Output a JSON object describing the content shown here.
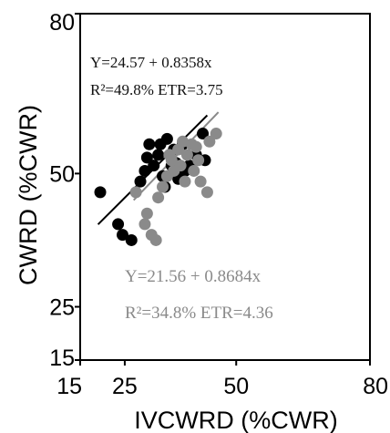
{
  "chart_data": {
    "type": "scatter",
    "xlabel": "IVCWRD (%CWR)",
    "ylabel": "CWRD (%CWR)",
    "xlim": [
      15,
      80
    ],
    "ylim": [
      15,
      80
    ],
    "x_ticks": [
      "15",
      "25",
      "50",
      "80"
    ],
    "y_ticks": [
      "15",
      "25",
      "50",
      "80"
    ],
    "grid": false,
    "series": [
      {
        "color": "#000000",
        "fit": {
          "intercept": 24.57,
          "slope": 0.8358
        },
        "equation": "Y=24.57 + 0.8358x",
        "stats": "R²=49.8%  ETR=3.75",
        "points": [
          [
            19.5,
            46.5
          ],
          [
            23.5,
            40.5
          ],
          [
            24.5,
            38.5
          ],
          [
            26.5,
            37.5
          ],
          [
            28.5,
            48.5
          ],
          [
            29.5,
            50.5
          ],
          [
            30.5,
            55.5
          ],
          [
            31.5,
            51.5
          ],
          [
            32.5,
            53.5
          ],
          [
            33.5,
            49.5
          ],
          [
            34.5,
            56.5
          ],
          [
            35.5,
            51.5
          ],
          [
            36.0,
            54.5
          ],
          [
            37.0,
            49.0
          ],
          [
            38.0,
            55.5
          ],
          [
            39.5,
            51.5
          ],
          [
            41.0,
            53.5
          ],
          [
            42.5,
            57.5
          ],
          [
            43.0,
            52.5
          ],
          [
            34.0,
            47.5
          ],
          [
            30.0,
            53.0
          ],
          [
            33.0,
            55.5
          ],
          [
            36.5,
            52.0
          ],
          [
            38.5,
            50.5
          ]
        ]
      },
      {
        "color": "#8a8a8a",
        "fit": {
          "intercept": 21.56,
          "slope": 0.8684
        },
        "equation": "Y=21.56 + 0.8684x",
        "stats": "R²=34.8%  ETR=4.36",
        "points": [
          [
            27.5,
            46.5
          ],
          [
            29.5,
            40.5
          ],
          [
            30.0,
            42.5
          ],
          [
            31.0,
            38.5
          ],
          [
            32.0,
            37.5
          ],
          [
            32.5,
            45.5
          ],
          [
            33.5,
            47.5
          ],
          [
            34.5,
            49.5
          ],
          [
            35.5,
            52.5
          ],
          [
            36.0,
            50.5
          ],
          [
            37.0,
            54.5
          ],
          [
            37.5,
            51.5
          ],
          [
            38.5,
            48.5
          ],
          [
            39.0,
            53.5
          ],
          [
            40.0,
            55.5
          ],
          [
            40.5,
            50.5
          ],
          [
            41.5,
            52.5
          ],
          [
            42.0,
            48.5
          ],
          [
            43.5,
            46.5
          ],
          [
            44.0,
            56.0
          ],
          [
            45.5,
            57.5
          ],
          [
            35.0,
            53.5
          ],
          [
            38.0,
            56.0
          ],
          [
            41.0,
            55.0
          ]
        ]
      }
    ]
  }
}
